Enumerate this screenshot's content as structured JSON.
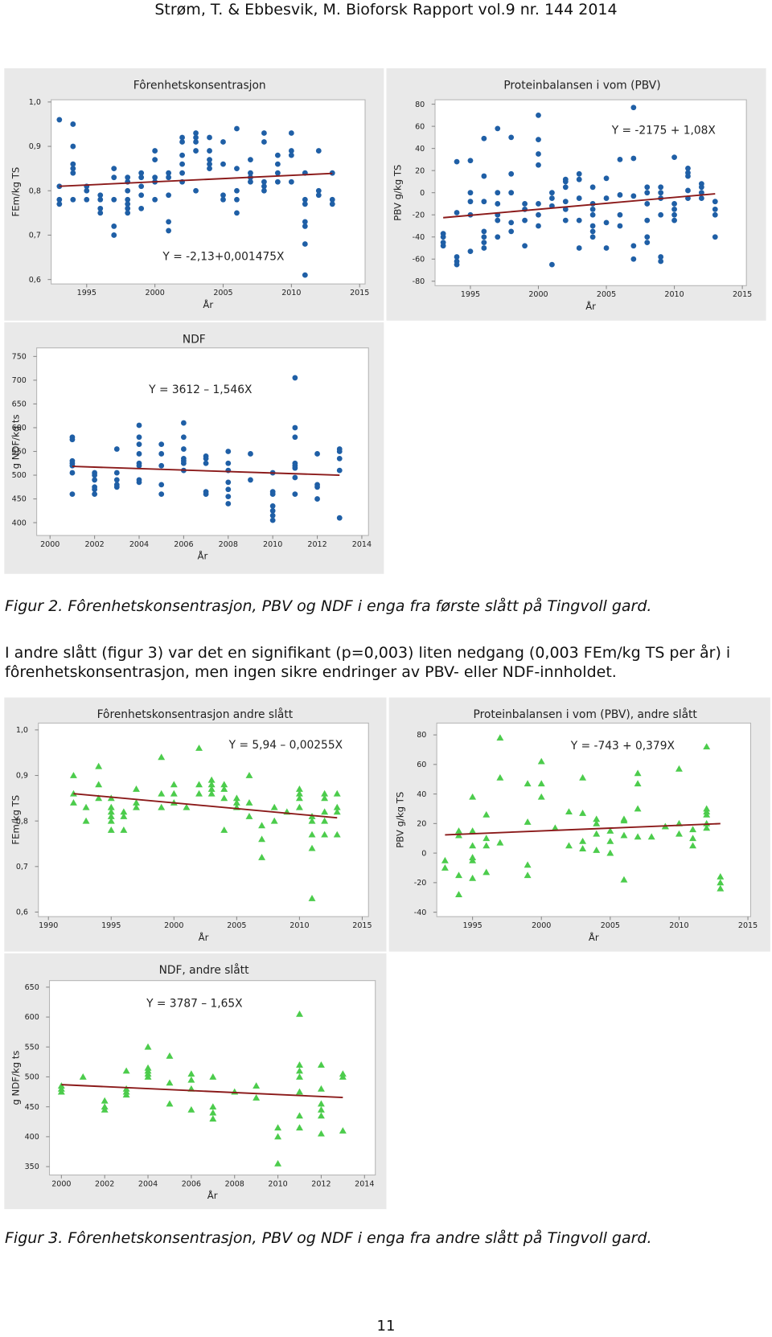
{
  "header": "Strøm, T. & Ebbesvik, M. Bioforsk Rapport vol.9 nr. 144 2014",
  "caption_fig2": "Figur 2. Fôrenhetskonsentrasjon, PBV og NDF i enga fra første slått på Tingvoll gard.",
  "paragraph": "I andre slått (figur 3) var det en signifikant (p=0,003) liten nedgang (0,003 FEm/kg TS per år) i fôrenhetskonsentrasjon, men ingen sikre endringer av PBV- eller NDF-innholdet.",
  "caption_fig3": "Figur 3. Fôrenhetskonsentrasjon, PBV og NDF i enga fra andre slått på Tingvoll gard.",
  "page_number": "11",
  "chart_data": [
    {
      "type": "scatter",
      "title": "Fôrenhetskonsentrasjon",
      "xlabel": "År",
      "ylabel": "FEm/kg TS",
      "annotation": "Y = -2,13+0,001475X",
      "color": "#1f5fa6",
      "marker": "circle",
      "grid": false,
      "x": [
        1993,
        1993,
        1993,
        1993,
        1994,
        1994,
        1994,
        1994,
        1994,
        1994,
        1995,
        1995,
        1995,
        1996,
        1996,
        1996,
        1996,
        1997,
        1997,
        1997,
        1997,
        1997,
        1998,
        1998,
        1998,
        1998,
        1998,
        1998,
        1998,
        1999,
        1999,
        1999,
        1999,
        1999,
        2000,
        2000,
        2000,
        2000,
        2000,
        2001,
        2001,
        2001,
        2001,
        2001,
        2002,
        2002,
        2002,
        2002,
        2002,
        2002,
        2003,
        2003,
        2003,
        2003,
        2003,
        2004,
        2004,
        2004,
        2004,
        2004,
        2005,
        2005,
        2005,
        2005,
        2006,
        2006,
        2006,
        2006,
        2006,
        2007,
        2007,
        2007,
        2007,
        2008,
        2008,
        2008,
        2008,
        2008,
        2009,
        2009,
        2009,
        2009,
        2010,
        2010,
        2010,
        2010,
        2011,
        2011,
        2011,
        2011,
        2011,
        2011,
        2011,
        2012,
        2012,
        2012,
        2013,
        2013,
        2013
      ],
      "values": [
        0.96,
        0.81,
        0.78,
        0.77,
        0.95,
        0.9,
        0.86,
        0.85,
        0.84,
        0.78,
        0.81,
        0.8,
        0.78,
        0.79,
        0.78,
        0.76,
        0.75,
        0.85,
        0.83,
        0.78,
        0.72,
        0.7,
        0.83,
        0.82,
        0.8,
        0.78,
        0.77,
        0.76,
        0.75,
        0.84,
        0.83,
        0.81,
        0.79,
        0.76,
        0.89,
        0.87,
        0.83,
        0.82,
        0.78,
        0.84,
        0.83,
        0.79,
        0.73,
        0.71,
        0.92,
        0.91,
        0.88,
        0.86,
        0.84,
        0.82,
        0.93,
        0.92,
        0.91,
        0.89,
        0.8,
        0.92,
        0.89,
        0.87,
        0.86,
        0.85,
        0.91,
        0.86,
        0.79,
        0.78,
        0.94,
        0.85,
        0.8,
        0.78,
        0.75,
        0.87,
        0.84,
        0.83,
        0.82,
        0.93,
        0.91,
        0.82,
        0.81,
        0.8,
        0.88,
        0.86,
        0.84,
        0.82,
        0.93,
        0.89,
        0.88,
        0.82,
        0.84,
        0.78,
        0.77,
        0.73,
        0.72,
        0.68,
        0.61,
        0.89,
        0.8,
        0.79,
        0.84,
        0.78,
        0.77
      ],
      "xlim": [
        1992.4,
        2015.4
      ],
      "ylim": [
        0.59,
        1.005
      ],
      "xticks": [
        1995,
        2000,
        2005,
        2010,
        2015
      ],
      "yticks": [
        {
          "value": 0.6,
          "label": "0,6"
        },
        {
          "value": 0.7,
          "label": "0,7"
        },
        {
          "value": 0.8,
          "label": "0,8"
        },
        {
          "value": 0.9,
          "label": "0,9"
        },
        {
          "value": 1,
          "label": "1,0"
        }
      ],
      "trend": {
        "color": "#8b1a1a",
        "x": [
          1993,
          2013
        ],
        "values": [
          0.81,
          0.839
        ]
      }
    },
    {
      "type": "scatter",
      "title": "Proteinbalansen i vom (PBV)",
      "xlabel": "År",
      "ylabel": "PBV g/kg TS",
      "annotation": "Y = -2175 + 1,08X",
      "color": "#1f5fa6",
      "marker": "circle",
      "grid": false,
      "x": [
        1993,
        1993,
        1993,
        1993,
        1994,
        1994,
        1994,
        1994,
        1994,
        1995,
        1995,
        1995,
        1995,
        1995,
        1996,
        1996,
        1996,
        1996,
        1996,
        1996,
        1996,
        1997,
        1997,
        1997,
        1997,
        1997,
        1997,
        1998,
        1998,
        1998,
        1998,
        1998,
        1999,
        1999,
        1999,
        1999,
        2000,
        2000,
        2000,
        2000,
        2000,
        2000,
        2000,
        2001,
        2001,
        2001,
        2001,
        2002,
        2002,
        2002,
        2002,
        2002,
        2002,
        2003,
        2003,
        2003,
        2003,
        2003,
        2004,
        2004,
        2004,
        2004,
        2004,
        2004,
        2004,
        2005,
        2005,
        2005,
        2005,
        2006,
        2006,
        2006,
        2006,
        2007,
        2007,
        2007,
        2007,
        2007,
        2008,
        2008,
        2008,
        2008,
        2008,
        2008,
        2009,
        2009,
        2009,
        2009,
        2009,
        2009,
        2010,
        2010,
        2010,
        2010,
        2010,
        2011,
        2011,
        2011,
        2011,
        2011,
        2012,
        2012,
        2012,
        2012,
        2013,
        2013,
        2013,
        2013
      ],
      "values": [
        -37,
        -40,
        -45,
        -48,
        28,
        -18,
        -58,
        -62,
        -65,
        29,
        0,
        -8,
        -20,
        -53,
        49,
        15,
        -8,
        -35,
        -40,
        -45,
        -50,
        58,
        0,
        -10,
        -20,
        -25,
        -40,
        50,
        17,
        0,
        -27,
        -35,
        -10,
        -15,
        -25,
        -48,
        70,
        48,
        35,
        25,
        -10,
        -20,
        -30,
        0,
        -5,
        -12,
        -65,
        12,
        10,
        5,
        -8,
        -15,
        -25,
        17,
        12,
        -5,
        -25,
        -50,
        5,
        -10,
        -15,
        -20,
        -30,
        -35,
        -40,
        13,
        -5,
        -27,
        -50,
        30,
        -2,
        -20,
        -30,
        77,
        31,
        -3,
        -48,
        -60,
        5,
        0,
        -10,
        -25,
        -40,
        -45,
        5,
        0,
        -5,
        -20,
        -58,
        -62,
        32,
        -10,
        -15,
        -20,
        -25,
        22,
        18,
        15,
        2,
        -5,
        8,
        5,
        0,
        -5,
        -8,
        -15,
        -20,
        -40
      ],
      "xlim": [
        1992.4,
        2015.3
      ],
      "ylim": [
        -84,
        84
      ],
      "xticks": [
        1995,
        2000,
        2005,
        2010,
        2015
      ],
      "yticks": [
        -80,
        -60,
        -40,
        -20,
        0,
        20,
        40,
        60,
        80
      ],
      "trend": {
        "color": "#8b1a1a",
        "x": [
          1993,
          2013
        ],
        "values": [
          -22.56,
          -0.96
        ]
      }
    },
    {
      "type": "scatter",
      "title": "NDF",
      "xlabel": "År",
      "ylabel": "g NDF/kg ts",
      "annotation": "Y = 3612 – 1,546X",
      "color": "#1f5fa6",
      "marker": "circle",
      "grid": false,
      "x": [
        2001,
        2001,
        2001,
        2001,
        2001,
        2001,
        2001,
        2002,
        2002,
        2002,
        2002,
        2002,
        2002,
        2003,
        2003,
        2003,
        2003,
        2003,
        2004,
        2004,
        2004,
        2004,
        2004,
        2004,
        2004,
        2004,
        2005,
        2005,
        2005,
        2005,
        2005,
        2006,
        2006,
        2006,
        2006,
        2006,
        2006,
        2006,
        2007,
        2007,
        2007,
        2007,
        2007,
        2008,
        2008,
        2008,
        2008,
        2008,
        2008,
        2008,
        2009,
        2009,
        2010,
        2010,
        2010,
        2010,
        2010,
        2010,
        2010,
        2011,
        2011,
        2011,
        2011,
        2011,
        2011,
        2011,
        2011,
        2012,
        2012,
        2012,
        2012,
        2013,
        2013,
        2013,
        2013,
        2013
      ],
      "values": [
        580,
        575,
        530,
        525,
        520,
        505,
        460,
        505,
        500,
        490,
        475,
        470,
        460,
        555,
        505,
        490,
        480,
        475,
        605,
        580,
        565,
        545,
        525,
        520,
        490,
        485,
        565,
        545,
        520,
        480,
        460,
        610,
        580,
        555,
        535,
        530,
        525,
        510,
        540,
        535,
        525,
        465,
        460,
        550,
        525,
        510,
        485,
        470,
        455,
        440,
        545,
        490,
        505,
        465,
        460,
        435,
        425,
        415,
        405,
        705,
        600,
        580,
        525,
        520,
        515,
        495,
        460,
        545,
        480,
        475,
        450,
        555,
        550,
        535,
        510,
        410
      ],
      "xlim": [
        1999.4,
        2014.3
      ],
      "ylim": [
        373,
        768
      ],
      "xticks": [
        2000,
        2002,
        2004,
        2006,
        2008,
        2010,
        2012,
        2014
      ],
      "yticks": [
        400,
        450,
        500,
        550,
        600,
        650,
        700,
        750
      ],
      "trend": {
        "color": "#8b1a1a",
        "x": [
          2001,
          2013
        ],
        "values": [
          518.5,
          499.9
        ]
      }
    },
    {
      "type": "scatter",
      "title": "Fôrenhetskonsentrasjon andre slått",
      "xlabel": "År",
      "ylabel": "FEm/kg TS",
      "annotation": "Y = 5,94 – 0,00255X",
      "color": "#4ccc4c",
      "marker": "triangle",
      "grid": false,
      "x": [
        1992,
        1992,
        1992,
        1993,
        1993,
        1994,
        1994,
        1994,
        1995,
        1995,
        1995,
        1995,
        1995,
        1995,
        1996,
        1996,
        1996,
        1997,
        1997,
        1997,
        1999,
        1999,
        1999,
        2000,
        2000,
        2000,
        2001,
        2002,
        2002,
        2002,
        2003,
        2003,
        2003,
        2003,
        2004,
        2004,
        2004,
        2004,
        2005,
        2005,
        2005,
        2006,
        2006,
        2006,
        2007,
        2007,
        2007,
        2008,
        2008,
        2009,
        2010,
        2010,
        2010,
        2010,
        2011,
        2011,
        2011,
        2011,
        2011,
        2012,
        2012,
        2012,
        2012,
        2012,
        2013,
        2013,
        2013,
        2013
      ],
      "values": [
        0.9,
        0.86,
        0.84,
        0.83,
        0.8,
        0.92,
        0.88,
        0.85,
        0.85,
        0.83,
        0.82,
        0.81,
        0.8,
        0.78,
        0.82,
        0.81,
        0.78,
        0.87,
        0.84,
        0.83,
        0.94,
        0.86,
        0.83,
        0.88,
        0.86,
        0.84,
        0.83,
        0.96,
        0.88,
        0.86,
        0.89,
        0.88,
        0.87,
        0.86,
        0.88,
        0.87,
        0.85,
        0.78,
        0.85,
        0.84,
        0.83,
        0.9,
        0.84,
        0.81,
        0.79,
        0.76,
        0.72,
        0.83,
        0.8,
        0.82,
        0.87,
        0.86,
        0.85,
        0.83,
        0.81,
        0.8,
        0.77,
        0.74,
        0.63,
        0.86,
        0.85,
        0.82,
        0.8,
        0.77,
        0.86,
        0.83,
        0.82,
        0.77
      ],
      "xlim": [
        1989.2,
        2015.5
      ],
      "ylim": [
        0.59,
        1.015
      ],
      "xticks": [
        1990,
        1995,
        2000,
        2005,
        2010,
        2015
      ],
      "yticks": [
        {
          "value": 0.6,
          "label": "0,6"
        },
        {
          "value": 0.7,
          "label": "0,7"
        },
        {
          "value": 0.8,
          "label": "0,8"
        },
        {
          "value": 0.9,
          "label": "0,9"
        },
        {
          "value": 1,
          "label": "1,0"
        }
      ],
      "trend": {
        "color": "#8b1a1a",
        "x": [
          1992,
          2013
        ],
        "values": [
          0.86,
          0.807
        ]
      }
    },
    {
      "type": "scatter",
      "title": "Proteinbalansen i vom (PBV), andre slått",
      "xlabel": "År",
      "ylabel": "PBV g/kg TS",
      "annotation": "Y = -743 + 0,379X",
      "color": "#4ccc4c",
      "marker": "triangle",
      "grid": false,
      "x": [
        1993,
        1993,
        1994,
        1994,
        1994,
        1994,
        1995,
        1995,
        1995,
        1995,
        1995,
        1995,
        1996,
        1996,
        1996,
        1996,
        1997,
        1997,
        1997,
        1999,
        1999,
        1999,
        1999,
        2000,
        2000,
        2000,
        2001,
        2002,
        2002,
        2003,
        2003,
        2003,
        2003,
        2004,
        2004,
        2004,
        2004,
        2005,
        2005,
        2005,
        2006,
        2006,
        2006,
        2006,
        2007,
        2007,
        2007,
        2007,
        2008,
        2009,
        2009,
        2010,
        2010,
        2010,
        2011,
        2011,
        2011,
        2012,
        2012,
        2012,
        2012,
        2012,
        2012,
        2013,
        2013,
        2013
      ],
      "values": [
        -5,
        -10,
        15,
        12,
        -15,
        -28,
        38,
        15,
        5,
        -3,
        -5,
        -17,
        26,
        10,
        5,
        -13,
        78,
        51,
        7,
        47,
        21,
        -8,
        -15,
        62,
        47,
        38,
        17,
        28,
        5,
        51,
        27,
        8,
        3,
        23,
        20,
        13,
        2,
        15,
        8,
        0,
        23,
        22,
        12,
        -18,
        54,
        47,
        30,
        11,
        11,
        18,
        18,
        57,
        20,
        13,
        16,
        10,
        5,
        72,
        30,
        28,
        26,
        20,
        17,
        -16,
        -20,
        -24
      ],
      "xlim": [
        1992.4,
        2015.2
      ],
      "ylim": [
        -43,
        88
      ],
      "xticks": [
        1995,
        2000,
        2005,
        2010,
        2015
      ],
      "yticks": [
        -40,
        -20,
        0,
        20,
        40,
        60,
        80
      ],
      "trend": {
        "color": "#8b1a1a",
        "x": [
          1993,
          2013
        ],
        "values": [
          12.35,
          19.93
        ]
      }
    },
    {
      "type": "scatter",
      "title": "NDF, andre slått",
      "xlabel": "År",
      "ylabel": "g NDF/kg ts",
      "annotation": "Y = 3787 – 1,65X",
      "color": "#4ccc4c",
      "marker": "triangle",
      "grid": false,
      "x": [
        2000,
        2000,
        2000,
        2001,
        2002,
        2002,
        2002,
        2003,
        2003,
        2003,
        2003,
        2004,
        2004,
        2004,
        2004,
        2004,
        2005,
        2005,
        2005,
        2006,
        2006,
        2006,
        2006,
        2007,
        2007,
        2007,
        2007,
        2008,
        2009,
        2009,
        2010,
        2010,
        2010,
        2011,
        2011,
        2011,
        2011,
        2011,
        2011,
        2011,
        2012,
        2012,
        2012,
        2012,
        2012,
        2012,
        2013,
        2013,
        2013
      ],
      "values": [
        485,
        480,
        475,
        500,
        460,
        450,
        445,
        510,
        480,
        475,
        470,
        550,
        515,
        510,
        505,
        500,
        535,
        490,
        455,
        505,
        495,
        480,
        445,
        500,
        450,
        440,
        430,
        475,
        485,
        465,
        415,
        400,
        355,
        605,
        520,
        510,
        500,
        475,
        435,
        415,
        520,
        480,
        455,
        445,
        435,
        405,
        505,
        500,
        410
      ],
      "xlim": [
        1999.45,
        2014.5
      ],
      "ylim": [
        336,
        661
      ],
      "xticks": [
        2000,
        2002,
        2004,
        2006,
        2008,
        2010,
        2012,
        2014
      ],
      "yticks": [
        350,
        400,
        450,
        500,
        550,
        600,
        650
      ],
      "trend": {
        "color": "#8b1a1a",
        "x": [
          2000,
          2013
        ],
        "values": [
          487,
          465.55
        ]
      }
    }
  ]
}
